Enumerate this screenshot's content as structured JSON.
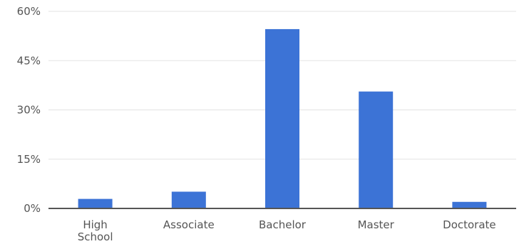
{
  "chart_data": {
    "type": "bar",
    "title": "",
    "xlabel": "",
    "ylabel": "",
    "categories": [
      "High School",
      "Associate",
      "Bachelor",
      "Master",
      "Doctorate"
    ],
    "category_lines": [
      [
        "High",
        "School"
      ],
      [
        "Associate"
      ],
      [
        "Bachelor"
      ],
      [
        "Master"
      ],
      [
        "Doctorate"
      ]
    ],
    "values": [
      2.9,
      5.1,
      54.6,
      35.6,
      2.0
    ],
    "value_unit": "%",
    "ylim": [
      0,
      60
    ],
    "yticks": [
      0,
      15,
      30,
      45,
      60
    ],
    "ytick_labels": [
      "0%",
      "15%",
      "30%",
      "45%",
      "60%"
    ],
    "grid": true,
    "legend": "none",
    "bar_color": "#3c73d6",
    "grid_color": "#e3e3e3",
    "axis_color": "#555555"
  }
}
